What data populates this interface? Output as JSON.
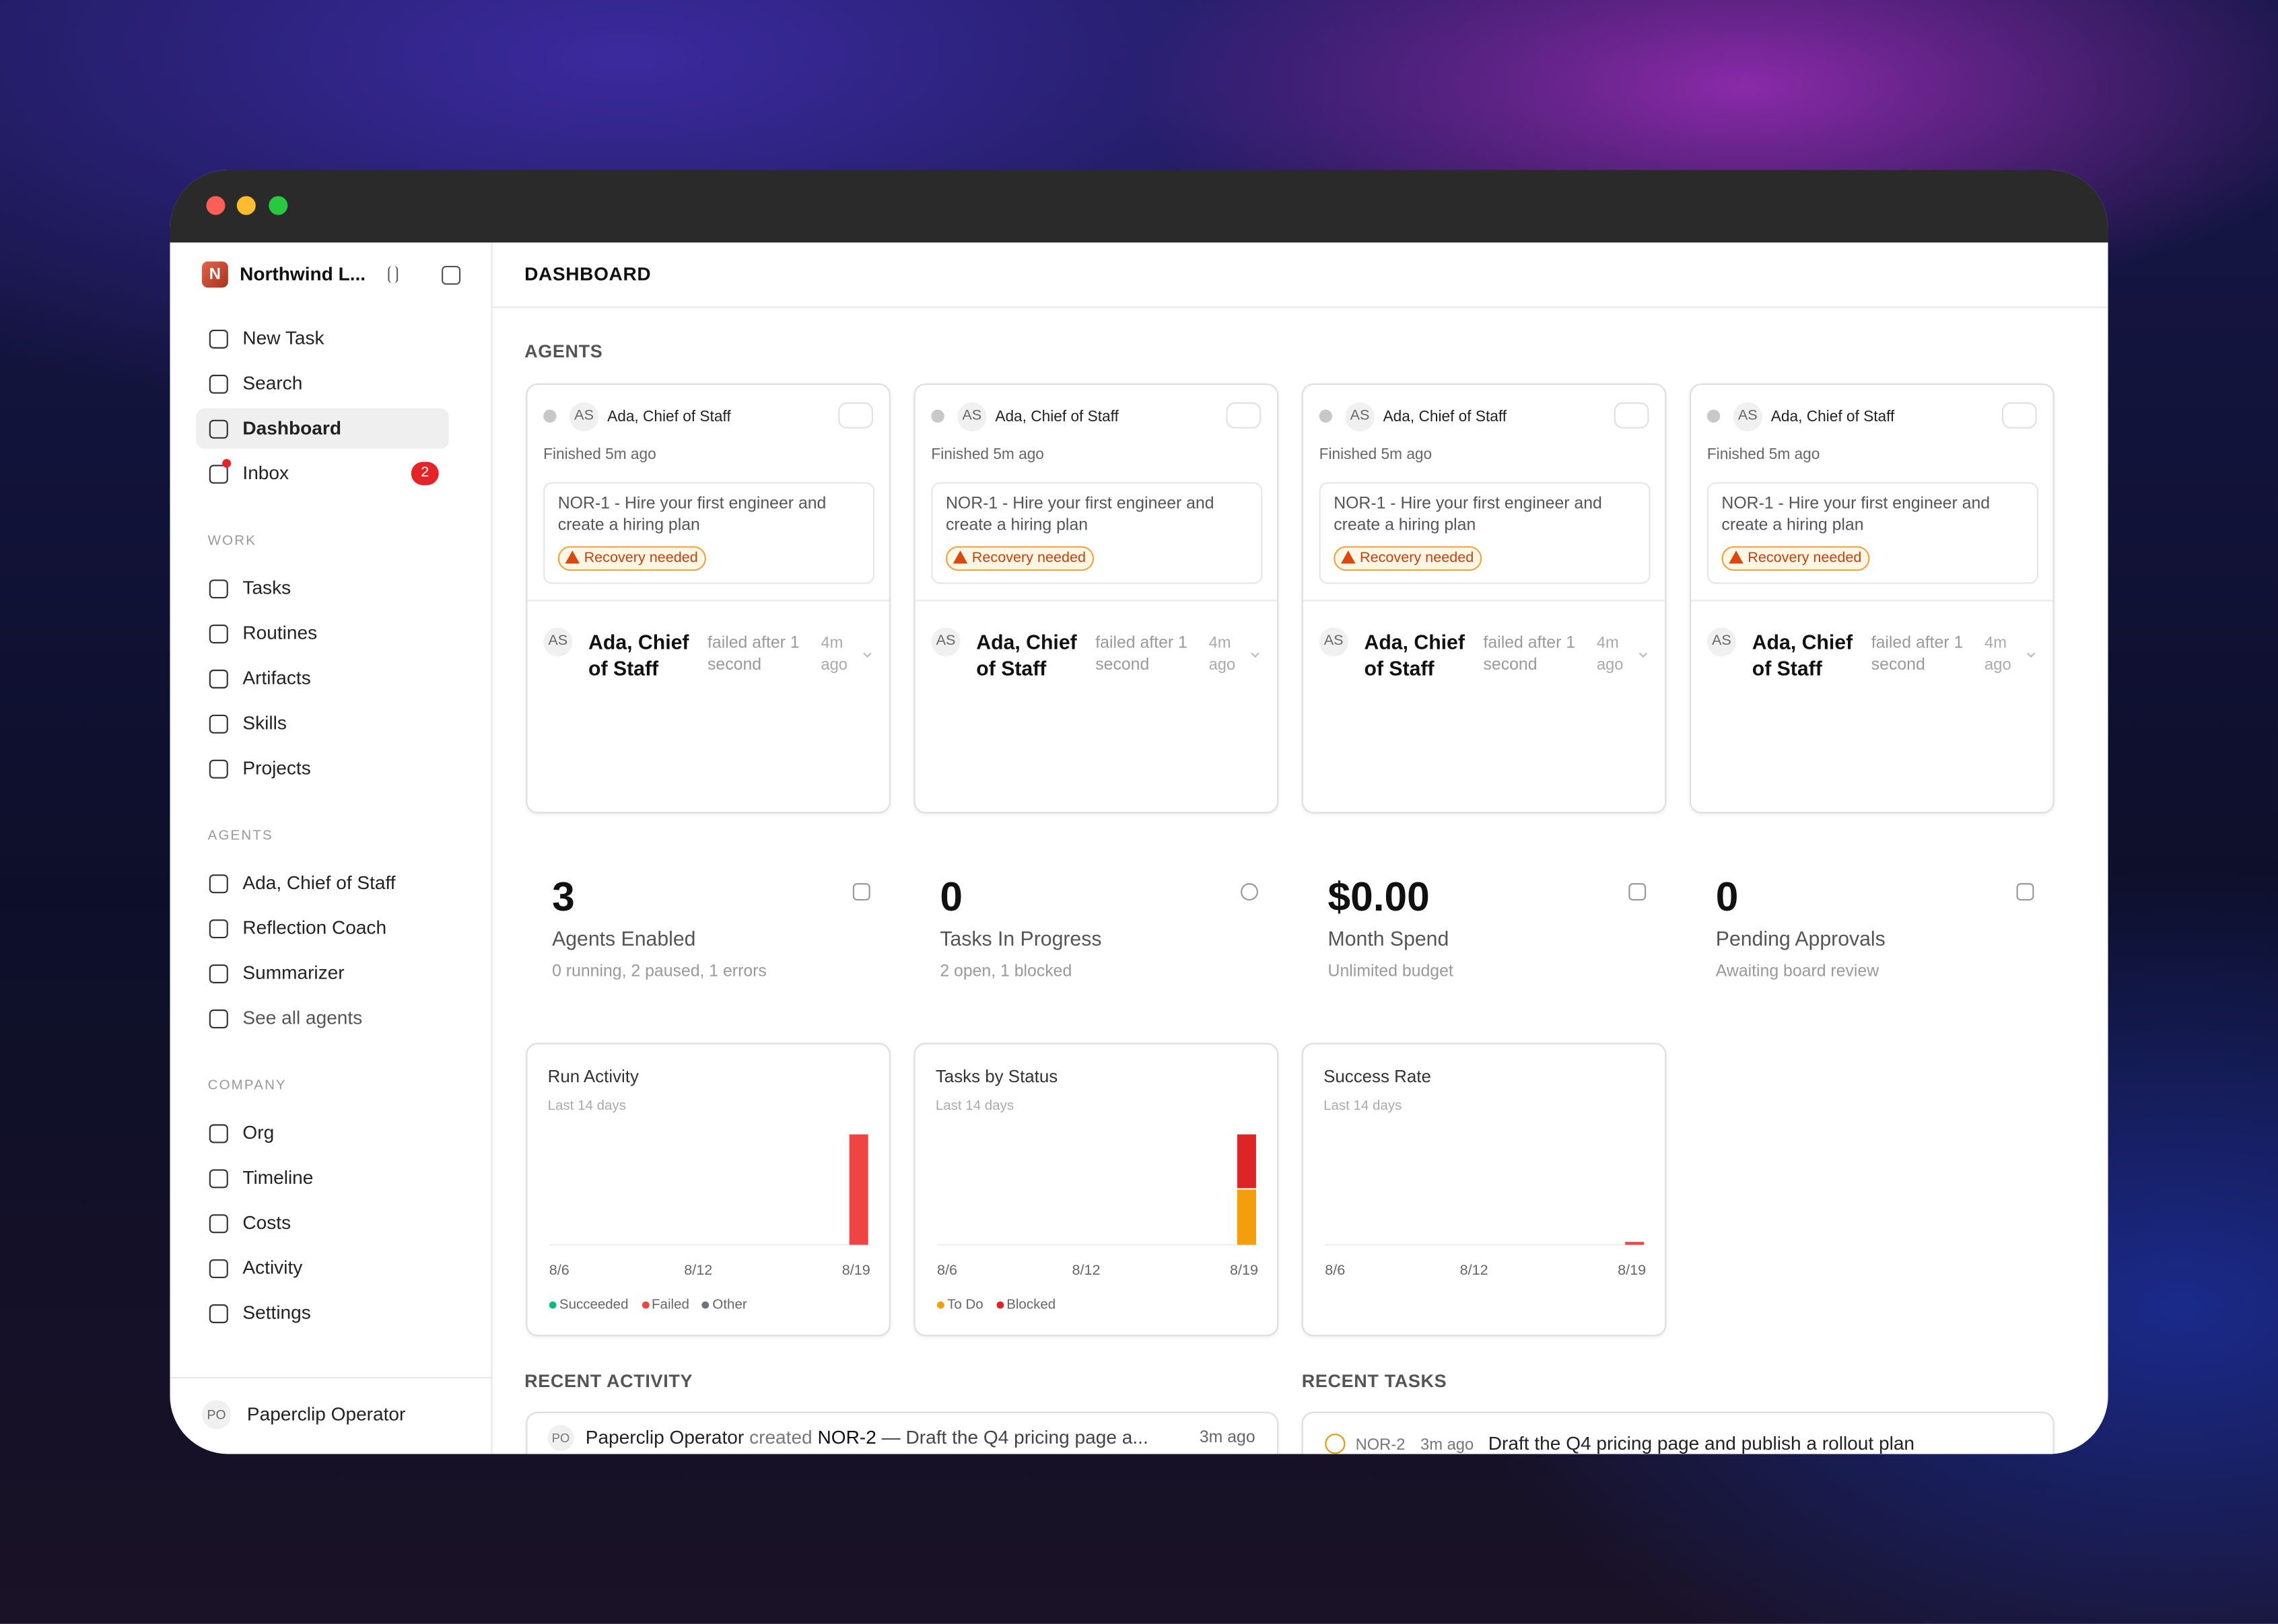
{
  "workspace_initial": "N",
  "workspace": "Northwind L...",
  "nav": [
    {
      "label": "New Task"
    },
    {
      "label": "Search"
    },
    {
      "label": "Dashboard",
      "active": true
    },
    {
      "label": "Inbox",
      "badge": 2
    }
  ],
  "sections": [
    {
      "title": "WORK",
      "items": [
        "Tasks",
        "Routines",
        "Artifacts",
        "Skills",
        "Projects"
      ]
    },
    {
      "title": "AGENTS",
      "items": [
        "Ada, Chief of Staff",
        "Reflection Coach",
        "Summarizer",
        "See all agents"
      ]
    },
    {
      "title": "COMPANY",
      "items": [
        "Org",
        "Timeline",
        "Costs",
        "Activity",
        "Settings"
      ]
    }
  ],
  "user": {
    "initials": "PO",
    "name": "Paperclip Operator"
  },
  "header": "DASHBOARD",
  "agents_title": "AGENTS",
  "agent_cards": [
    {
      "initials": "AS",
      "name": "Ada, Chief of Staff",
      "status": "Finished 5m ago",
      "task": "NOR-1 - Hire your first engineer and create a hiring plan",
      "badge": "Recovery needed",
      "run_initials": "AS",
      "run_name": "Ada, Chief of Staff",
      "run_status": "failed after 1 second",
      "run_time": "4m ago"
    },
    {
      "initials": "AS",
      "name": "Ada, Chief of Staff",
      "status": "Finished 5m ago",
      "task": "NOR-1 - Hire your first engineer and create a hiring plan",
      "badge": "Recovery needed",
      "run_initials": "AS",
      "run_name": "Ada, Chief of Staff",
      "run_status": "failed after 1 second",
      "run_time": "4m ago"
    },
    {
      "initials": "AS",
      "name": "Ada, Chief of Staff",
      "status": "Finished 5m ago",
      "task": "NOR-1 - Hire your first engineer and create a hiring plan",
      "badge": "Recovery needed",
      "run_initials": "AS",
      "run_name": "Ada, Chief of Staff",
      "run_status": "failed after 1 second",
      "run_time": "4m ago"
    },
    {
      "initials": "AS",
      "name": "Ada, Chief of Staff",
      "status": "Finished 5m ago",
      "task": "NOR-1 - Hire your first engineer and create a hiring plan",
      "badge": "Recovery needed",
      "run_initials": "AS",
      "run_name": "Ada, Chief of Staff",
      "run_status": "failed after 1 second",
      "run_time": "4m ago"
    }
  ],
  "stats": [
    {
      "value": 3,
      "label": "Agents Enabled",
      "sub": "0 running, 2 paused, 1 errors"
    },
    {
      "value": 0,
      "label": "Tasks In Progress",
      "sub": "2 open, 1 blocked"
    },
    {
      "value": "$0.00",
      "label": "Month Spend",
      "sub": "Unlimited budget"
    },
    {
      "value": 0,
      "label": "Pending Approvals",
      "sub": "Awaiting board review"
    }
  ],
  "charts": [
    {
      "type": "bar",
      "title": "Run Activity",
      "subtitle": "Last 14 days",
      "categories": [
        "8/6",
        null,
        null,
        null,
        null,
        null,
        "8/12",
        null,
        null,
        null,
        null,
        null,
        null,
        "8/19"
      ],
      "ylim": [
        0,
        1
      ],
      "series": [
        {
          "name": "Succeeded",
          "color": "#10b981",
          "values": [
            null,
            null,
            null,
            null,
            null,
            null,
            null,
            null,
            null,
            null,
            null,
            null,
            null,
            null
          ]
        },
        {
          "name": "Failed",
          "color": "#ef4444",
          "values": [
            null,
            null,
            null,
            null,
            null,
            null,
            null,
            null,
            null,
            null,
            null,
            null,
            null,
            1
          ]
        },
        {
          "name": "Other",
          "color": "#6b7280",
          "values": [
            null,
            null,
            null,
            null,
            null,
            null,
            null,
            null,
            null,
            null,
            null,
            null,
            null,
            null
          ]
        }
      ]
    },
    {
      "type": "bar",
      "title": "Tasks by Status",
      "subtitle": "Last 14 days",
      "categories": [
        "8/6",
        null,
        null,
        null,
        null,
        null,
        "8/12",
        null,
        null,
        null,
        null,
        null,
        null,
        "8/19"
      ],
      "ylim": [
        0,
        2
      ],
      "series": [
        {
          "name": "To Do",
          "color": "#f59e0b",
          "values": [
            null,
            null,
            null,
            null,
            null,
            null,
            null,
            null,
            null,
            null,
            null,
            null,
            null,
            1
          ]
        },
        {
          "name": "Blocked",
          "color": "#dc2626",
          "values": [
            null,
            null,
            null,
            null,
            null,
            null,
            null,
            null,
            null,
            null,
            null,
            null,
            null,
            1
          ]
        }
      ]
    },
    {
      "type": "bar",
      "title": "Success Rate",
      "subtitle": "Last 14 days",
      "categories": [
        "8/6",
        null,
        null,
        null,
        null,
        null,
        "8/12",
        null,
        null,
        null,
        null,
        null,
        null,
        "8/19"
      ],
      "ylim": [
        0,
        100
      ],
      "series": [
        {
          "color": "#ef4444",
          "values": [
            null,
            null,
            null,
            null,
            null,
            null,
            null,
            null,
            null,
            null,
            null,
            null,
            null,
            0
          ]
        }
      ]
    }
  ],
  "recent_activity_title": "RECENT ACTIVITY",
  "activity": [
    {
      "initials": "PO",
      "actor": "Paperclip Operator",
      "verb": "created",
      "ref": "NOR-2",
      "text": "— Draft the Q4 pricing page a...",
      "time": "3m ago"
    }
  ],
  "recent_tasks_title": "RECENT TASKS",
  "tasks": [
    {
      "id": "NOR-2",
      "time": "3m ago",
      "title": "Draft the Q4 pricing page and publish a rollout plan"
    }
  ]
}
